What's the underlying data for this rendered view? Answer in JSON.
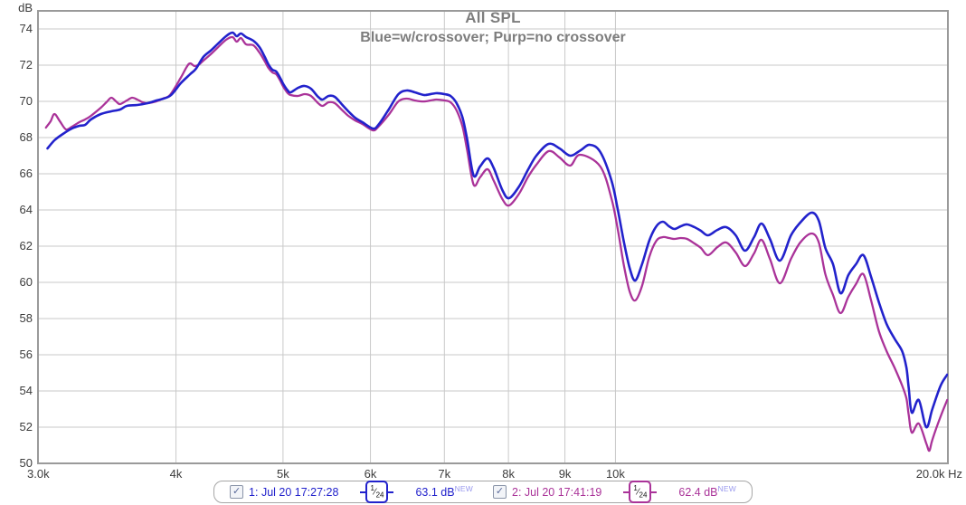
{
  "title": "All SPL",
  "subtitle": "Blue=w/crossover; Purp=no crossover",
  "colors": {
    "trace_blue": "#2222cc",
    "trace_purple": "#aa3399",
    "grid": "#c9c9c9",
    "plot_border": "#9a9a9a",
    "tick_text": "#3c3c3c",
    "title_text": "#7d7d7d",
    "new_tag": "#9a9aee",
    "checkbox_check": "#5a6a9a"
  },
  "y_axis": {
    "unit": "dB",
    "ticks": [
      74,
      72,
      70,
      68,
      66,
      64,
      62,
      60,
      58,
      56,
      54,
      52,
      50
    ]
  },
  "x_axis": {
    "first_tick": {
      "f": 3000,
      "label": "3.0k"
    },
    "ticks": [
      {
        "f": 4000,
        "label": "4k"
      },
      {
        "f": 5000,
        "label": "5k"
      },
      {
        "f": 6000,
        "label": "6k"
      },
      {
        "f": 7000,
        "label": "7k"
      },
      {
        "f": 8000,
        "label": "8k"
      },
      {
        "f": 9000,
        "label": "9k"
      },
      {
        "f": 10000,
        "label": "10k"
      }
    ],
    "last_tick": {
      "f": 20000,
      "label": "20.0k Hz"
    }
  },
  "legend": [
    {
      "checked": true,
      "checkmark": "✓",
      "label": "1: Jul 20 17:27:28",
      "smoothing_num": "1",
      "smoothing_den": "24",
      "smoothing_slash": "⁄",
      "value": "63.1 dB",
      "tag": "NEW",
      "color": "#2222cc"
    },
    {
      "checked": true,
      "checkmark": "✓",
      "label": "2: Jul 20 17:41:19",
      "smoothing_num": "1",
      "smoothing_den": "24",
      "smoothing_slash": "⁄",
      "value": "62.4 dB",
      "tag": "NEW",
      "color": "#aa3399"
    }
  ],
  "chart_data": {
    "type": "line",
    "title": "All SPL",
    "subtitle": "Blue=w/crossover; Purp=no crossover",
    "xlabel": "Hz",
    "ylabel": "dB",
    "x_scale": "log",
    "xlim": [
      3000,
      20000
    ],
    "ylim": [
      50,
      75
    ],
    "grid": true,
    "legend_position": "bottom",
    "series": [
      {
        "name": "1: Jul 20 17:27:28 (Blue = w/crossover)",
        "color": "#2222cc",
        "points": [
          [
            3060,
            67.4
          ],
          [
            3105,
            67.85
          ],
          [
            3160,
            68.2
          ],
          [
            3220,
            68.5
          ],
          [
            3270,
            68.65
          ],
          [
            3310,
            68.7
          ],
          [
            3350,
            69.0
          ],
          [
            3420,
            69.3
          ],
          [
            3495,
            69.45
          ],
          [
            3560,
            69.55
          ],
          [
            3610,
            69.75
          ],
          [
            3690,
            69.8
          ],
          [
            3770,
            69.9
          ],
          [
            3840,
            70.05
          ],
          [
            3950,
            70.3
          ],
          [
            4040,
            71.0
          ],
          [
            4120,
            71.5
          ],
          [
            4170,
            71.8
          ],
          [
            4235,
            72.45
          ],
          [
            4300,
            72.8
          ],
          [
            4360,
            73.15
          ],
          [
            4440,
            73.6
          ],
          [
            4500,
            73.8
          ],
          [
            4540,
            73.6
          ],
          [
            4580,
            73.75
          ],
          [
            4630,
            73.55
          ],
          [
            4700,
            73.35
          ],
          [
            4760,
            73.0
          ],
          [
            4810,
            72.5
          ],
          [
            4850,
            72.05
          ],
          [
            4890,
            71.75
          ],
          [
            4930,
            71.65
          ],
          [
            4970,
            71.3
          ],
          [
            5010,
            70.9
          ],
          [
            5050,
            70.6
          ],
          [
            5080,
            70.5
          ],
          [
            5160,
            70.75
          ],
          [
            5230,
            70.85
          ],
          [
            5300,
            70.7
          ],
          [
            5380,
            70.25
          ],
          [
            5430,
            70.1
          ],
          [
            5500,
            70.3
          ],
          [
            5570,
            70.25
          ],
          [
            5660,
            69.8
          ],
          [
            5730,
            69.45
          ],
          [
            5810,
            69.1
          ],
          [
            5900,
            68.85
          ],
          [
            6030,
            68.5
          ],
          [
            6100,
            68.7
          ],
          [
            6240,
            69.6
          ],
          [
            6360,
            70.4
          ],
          [
            6470,
            70.6
          ],
          [
            6580,
            70.5
          ],
          [
            6660,
            70.4
          ],
          [
            6730,
            70.35
          ],
          [
            6880,
            70.45
          ],
          [
            7000,
            70.4
          ],
          [
            7090,
            70.3
          ],
          [
            7180,
            69.9
          ],
          [
            7270,
            69.1
          ],
          [
            7340,
            67.9
          ],
          [
            7440,
            65.9
          ],
          [
            7540,
            66.4
          ],
          [
            7660,
            66.85
          ],
          [
            7760,
            66.3
          ],
          [
            7900,
            65.1
          ],
          [
            8010,
            64.65
          ],
          [
            8180,
            65.3
          ],
          [
            8330,
            66.2
          ],
          [
            8480,
            67.0
          ],
          [
            8700,
            67.65
          ],
          [
            8900,
            67.4
          ],
          [
            9100,
            67.0
          ],
          [
            9300,
            67.3
          ],
          [
            9480,
            67.6
          ],
          [
            9690,
            67.2
          ],
          [
            9920,
            65.6
          ],
          [
            10050,
            64.0
          ],
          [
            10180,
            62.2
          ],
          [
            10300,
            60.8
          ],
          [
            10420,
            60.1
          ],
          [
            10570,
            61.0
          ],
          [
            10730,
            62.3
          ],
          [
            10890,
            63.1
          ],
          [
            11040,
            63.35
          ],
          [
            11180,
            63.1
          ],
          [
            11310,
            62.95
          ],
          [
            11460,
            63.1
          ],
          [
            11610,
            63.2
          ],
          [
            11790,
            63.05
          ],
          [
            11950,
            62.85
          ],
          [
            12130,
            62.6
          ],
          [
            12370,
            62.9
          ],
          [
            12600,
            63.05
          ],
          [
            12850,
            62.6
          ],
          [
            13100,
            61.75
          ],
          [
            13350,
            62.5
          ],
          [
            13560,
            63.25
          ],
          [
            13800,
            62.4
          ],
          [
            14090,
            61.2
          ],
          [
            14420,
            62.6
          ],
          [
            14700,
            63.3
          ],
          [
            15050,
            63.85
          ],
          [
            15280,
            63.4
          ],
          [
            15490,
            61.9
          ],
          [
            15740,
            61.0
          ],
          [
            15990,
            59.4
          ],
          [
            16250,
            60.4
          ],
          [
            16510,
            61.0
          ],
          [
            16770,
            61.5
          ],
          [
            17040,
            60.3
          ],
          [
            17320,
            58.9
          ],
          [
            17600,
            57.7
          ],
          [
            17890,
            56.9
          ],
          [
            18180,
            56.2
          ],
          [
            18340,
            55.3
          ],
          [
            18430,
            54.2
          ],
          [
            18550,
            52.8
          ],
          [
            18820,
            53.5
          ],
          [
            19120,
            52.0
          ],
          [
            19360,
            53.0
          ],
          [
            19700,
            54.3
          ],
          [
            19970,
            54.9
          ]
        ]
      },
      {
        "name": "2: Jul 20 17:41:19 (Purp = no crossover)",
        "color": "#aa3399",
        "points": [
          [
            3050,
            68.55
          ],
          [
            3080,
            68.9
          ],
          [
            3105,
            69.3
          ],
          [
            3140,
            68.9
          ],
          [
            3180,
            68.45
          ],
          [
            3220,
            68.6
          ],
          [
            3270,
            68.85
          ],
          [
            3310,
            69.0
          ],
          [
            3350,
            69.2
          ],
          [
            3420,
            69.65
          ],
          [
            3460,
            69.95
          ],
          [
            3495,
            70.2
          ],
          [
            3530,
            70.0
          ],
          [
            3560,
            69.85
          ],
          [
            3610,
            70.05
          ],
          [
            3650,
            70.2
          ],
          [
            3690,
            70.1
          ],
          [
            3730,
            69.95
          ],
          [
            3770,
            69.9
          ],
          [
            3840,
            70.0
          ],
          [
            3890,
            70.15
          ],
          [
            3950,
            70.35
          ],
          [
            4040,
            71.3
          ],
          [
            4090,
            71.9
          ],
          [
            4120,
            72.1
          ],
          [
            4160,
            71.95
          ],
          [
            4200,
            72.05
          ],
          [
            4235,
            72.25
          ],
          [
            4300,
            72.6
          ],
          [
            4360,
            72.95
          ],
          [
            4440,
            73.4
          ],
          [
            4500,
            73.55
          ],
          [
            4540,
            73.3
          ],
          [
            4580,
            73.5
          ],
          [
            4630,
            73.15
          ],
          [
            4700,
            73.1
          ],
          [
            4760,
            72.7
          ],
          [
            4810,
            72.25
          ],
          [
            4850,
            71.85
          ],
          [
            4890,
            71.6
          ],
          [
            4930,
            71.5
          ],
          [
            4970,
            71.15
          ],
          [
            5010,
            70.75
          ],
          [
            5050,
            70.45
          ],
          [
            5080,
            70.35
          ],
          [
            5160,
            70.3
          ],
          [
            5230,
            70.4
          ],
          [
            5300,
            70.3
          ],
          [
            5380,
            69.9
          ],
          [
            5430,
            69.75
          ],
          [
            5500,
            69.95
          ],
          [
            5570,
            69.9
          ],
          [
            5660,
            69.5
          ],
          [
            5730,
            69.2
          ],
          [
            5810,
            68.95
          ],
          [
            5900,
            68.75
          ],
          [
            6030,
            68.4
          ],
          [
            6100,
            68.6
          ],
          [
            6240,
            69.3
          ],
          [
            6360,
            70.0
          ],
          [
            6470,
            70.15
          ],
          [
            6580,
            70.05
          ],
          [
            6660,
            70.0
          ],
          [
            6730,
            70.0
          ],
          [
            6880,
            70.1
          ],
          [
            7000,
            70.05
          ],
          [
            7090,
            69.95
          ],
          [
            7180,
            69.5
          ],
          [
            7270,
            68.6
          ],
          [
            7340,
            67.3
          ],
          [
            7440,
            65.4
          ],
          [
            7540,
            65.8
          ],
          [
            7660,
            66.25
          ],
          [
            7760,
            65.6
          ],
          [
            7900,
            64.6
          ],
          [
            8010,
            64.25
          ],
          [
            8180,
            64.9
          ],
          [
            8330,
            65.8
          ],
          [
            8480,
            66.5
          ],
          [
            8700,
            67.25
          ],
          [
            8900,
            66.9
          ],
          [
            9100,
            66.45
          ],
          [
            9290,
            67.05
          ],
          [
            9690,
            66.4
          ],
          [
            9920,
            64.6
          ],
          [
            10050,
            62.9
          ],
          [
            10180,
            60.9
          ],
          [
            10300,
            59.5
          ],
          [
            10420,
            59.0
          ],
          [
            10570,
            59.8
          ],
          [
            10730,
            61.4
          ],
          [
            10890,
            62.3
          ],
          [
            11040,
            62.5
          ],
          [
            11180,
            62.45
          ],
          [
            11310,
            62.4
          ],
          [
            11460,
            62.45
          ],
          [
            11610,
            62.4
          ],
          [
            11790,
            62.15
          ],
          [
            11950,
            61.9
          ],
          [
            12130,
            61.5
          ],
          [
            12370,
            61.95
          ],
          [
            12600,
            62.2
          ],
          [
            12850,
            61.65
          ],
          [
            13100,
            60.9
          ],
          [
            13350,
            61.6
          ],
          [
            13560,
            62.35
          ],
          [
            13800,
            61.3
          ],
          [
            14090,
            59.95
          ],
          [
            14420,
            61.3
          ],
          [
            14700,
            62.2
          ],
          [
            15050,
            62.7
          ],
          [
            15280,
            62.2
          ],
          [
            15490,
            60.45
          ],
          [
            15740,
            59.3
          ],
          [
            15990,
            58.3
          ],
          [
            16250,
            59.2
          ],
          [
            16510,
            59.9
          ],
          [
            16770,
            60.45
          ],
          [
            17040,
            59.0
          ],
          [
            17320,
            57.3
          ],
          [
            17600,
            56.2
          ],
          [
            17890,
            55.3
          ],
          [
            18180,
            54.3
          ],
          [
            18340,
            53.6
          ],
          [
            18430,
            52.7
          ],
          [
            18550,
            51.7
          ],
          [
            18820,
            52.2
          ],
          [
            19120,
            51.1
          ],
          [
            19240,
            50.7
          ],
          [
            19360,
            51.3
          ],
          [
            19700,
            52.6
          ],
          [
            19970,
            53.5
          ]
        ]
      }
    ]
  }
}
